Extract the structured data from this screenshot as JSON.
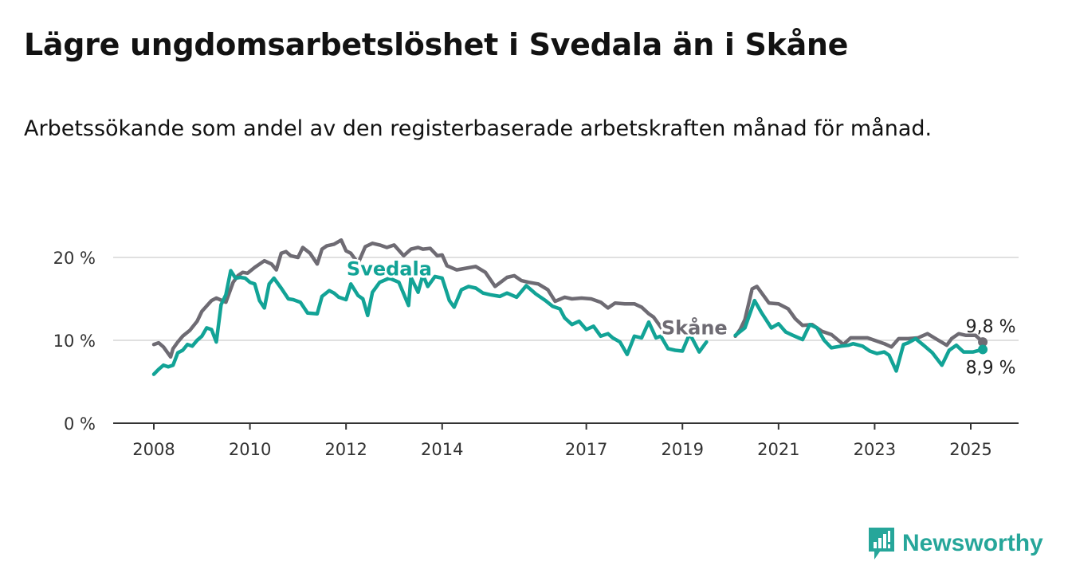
{
  "header": {
    "title": "Lägre ungdomsarbetslöshet i Svedala än i Skåne",
    "subtitle": "Arbetssökande som andel av den registerbaserade arbetskraften månad för månad."
  },
  "brand": {
    "name": "Newsworthy",
    "color": "#26a69a"
  },
  "chart_data": {
    "type": "line",
    "title": "Lägre ungdomsarbetslöshet i Svedala än i Skåne",
    "subtitle": "Arbetssökande som andel av den registerbaserade arbetskraften månad för månad.",
    "y_ticks": [
      {
        "value": 0,
        "label": "0 %"
      },
      {
        "value": 10,
        "label": "10 %"
      },
      {
        "value": 20,
        "label": "20 %"
      }
    ],
    "x_ticks": [
      {
        "value": 2008,
        "label": "2008"
      },
      {
        "value": 2010,
        "label": "2010"
      },
      {
        "value": 2012,
        "label": "2012"
      },
      {
        "value": 2014,
        "label": "2014"
      },
      {
        "value": 2017,
        "label": "2017"
      },
      {
        "value": 2019,
        "label": "2019"
      },
      {
        "value": 2021,
        "label": "2021"
      },
      {
        "value": 2023,
        "label": "2023"
      },
      {
        "value": 2025,
        "label": "2025"
      }
    ],
    "xlim": [
      2005.8,
      2026.0
    ],
    "ylim": [
      0,
      23
    ],
    "grid": true,
    "legend": "direct labels on lines",
    "series": [
      {
        "name": "Skåne",
        "color": "#6e6b73",
        "label_at": [
          2019.25,
          11.5
        ],
        "end_label": "9,8 %",
        "x": [
          2008.0,
          2008.1,
          2008.2,
          2008.35,
          2008.4,
          2008.5,
          2008.6,
          2008.75,
          2008.9,
          2009.0,
          2009.2,
          2009.3,
          2009.5,
          2009.65,
          2009.75,
          2009.85,
          2009.95,
          2010.1,
          2010.3,
          2010.45,
          2010.55,
          2010.65,
          2010.75,
          2010.85,
          2011.0,
          2011.1,
          2011.25,
          2011.4,
          2011.5,
          2011.6,
          2011.75,
          2011.9,
          2012.0,
          2012.1,
          2012.25,
          2012.4,
          2012.55,
          2012.7,
          2012.85,
          2013.0,
          2013.2,
          2013.35,
          2013.5,
          2013.6,
          2013.75,
          2013.9,
          2014.0,
          2014.1,
          2014.3,
          2014.5,
          2014.7,
          2014.9,
          2015.1,
          2015.35,
          2015.5,
          2015.65,
          2015.8,
          2016.0,
          2016.2,
          2016.35,
          2016.55,
          2016.7,
          2016.9,
          2017.1,
          2017.3,
          2017.45,
          2017.6,
          2017.8,
          2018.0,
          2018.15,
          2018.3,
          2018.4,
          2018.5,
          2018.6
        ],
        "y": [
          9.5,
          9.7,
          9.2,
          8.0,
          9.0,
          9.8,
          10.5,
          11.2,
          12.3,
          13.5,
          14.8,
          15.1,
          14.6,
          17.0,
          17.8,
          18.2,
          18.1,
          18.8,
          19.6,
          19.2,
          18.5,
          20.5,
          20.7,
          20.2,
          20.0,
          21.2,
          20.5,
          19.2,
          21.0,
          21.4,
          21.6,
          22.1,
          20.8,
          20.5,
          19.3,
          21.3,
          21.7,
          21.5,
          21.2,
          21.5,
          20.2,
          21.0,
          21.2,
          21.0,
          21.1,
          20.2,
          20.3,
          19.0,
          18.5,
          18.7,
          18.9,
          18.2,
          16.5,
          17.6,
          17.8,
          17.2,
          17.0,
          16.8,
          16.1,
          14.7,
          15.2,
          15.0,
          15.1,
          15.0,
          14.6,
          13.9,
          14.5,
          14.4,
          14.4,
          14.0,
          13.2,
          12.8,
          12.0,
          11.2
        ]
      },
      {
        "name": "Skåne (2020–2025)",
        "color": "#6e6b73",
        "x": [
          2020.1,
          2020.2,
          2020.3,
          2020.45,
          2020.55,
          2020.65,
          2020.8,
          2021.0,
          2021.2,
          2021.35,
          2021.5,
          2021.7,
          2021.9,
          2022.1,
          2022.35,
          2022.5,
          2022.7,
          2022.85,
          2023.0,
          2023.2,
          2023.35,
          2023.5,
          2023.7,
          2023.9,
          2024.1,
          2024.3,
          2024.5,
          2024.6,
          2024.75,
          2024.9,
          2025.1,
          2025.25
        ],
        "y": [
          10.5,
          11.3,
          12.5,
          16.2,
          16.5,
          15.7,
          14.5,
          14.4,
          13.8,
          12.6,
          11.8,
          11.9,
          11.1,
          10.7,
          9.5,
          10.3,
          10.3,
          10.3,
          10.0,
          9.6,
          9.2,
          10.2,
          10.2,
          10.3,
          10.8,
          10.1,
          9.4,
          10.2,
          10.8,
          10.6,
          10.6,
          9.8
        ]
      },
      {
        "name": "Svedala",
        "color": "#12a396",
        "label_at": [
          2012.9,
          18.6
        ],
        "end_label": "8,9 %",
        "x": [
          2008.0,
          2008.1,
          2008.2,
          2008.3,
          2008.4,
          2008.5,
          2008.6,
          2008.7,
          2008.8,
          2008.9,
          2009.0,
          2009.1,
          2009.2,
          2009.3,
          2009.4,
          2009.5,
          2009.6,
          2009.7,
          2009.8,
          2009.9,
          2010.0,
          2010.1,
          2010.2,
          2010.3,
          2010.4,
          2010.5,
          2010.65,
          2010.8,
          2010.9,
          2011.05,
          2011.2,
          2011.4,
          2011.5,
          2011.65,
          2011.75,
          2011.85,
          2012.0,
          2012.1,
          2012.25,
          2012.35,
          2012.45,
          2012.55,
          2012.7,
          2012.9,
          2013.1,
          2013.3,
          2013.35,
          2013.5,
          2013.6,
          2013.7,
          2013.85,
          2014.0,
          2014.15,
          2014.25,
          2014.4,
          2014.55,
          2014.7,
          2014.85,
          2015.0,
          2015.2,
          2015.35,
          2015.55,
          2015.75,
          2015.95,
          2016.15,
          2016.3,
          2016.45,
          2016.55,
          2016.7,
          2016.85,
          2017.0,
          2017.15,
          2017.3,
          2017.45,
          2017.55,
          2017.7,
          2017.85,
          2018.0,
          2018.15,
          2018.3,
          2018.45,
          2018.55,
          2018.7,
          2018.85,
          2019.0,
          2019.15,
          2019.35,
          2019.5
        ],
        "y": [
          5.9,
          6.5,
          7.0,
          6.8,
          7.0,
          8.5,
          8.8,
          9.5,
          9.3,
          10.0,
          10.5,
          11.5,
          11.3,
          9.8,
          14.3,
          15.5,
          18.4,
          17.5,
          17.6,
          17.5,
          17.0,
          16.8,
          14.8,
          13.9,
          16.8,
          17.5,
          16.3,
          15.0,
          14.9,
          14.6,
          13.3,
          13.2,
          15.3,
          16.0,
          15.7,
          15.2,
          14.9,
          16.8,
          15.4,
          15.0,
          13.0,
          15.8,
          17.0,
          17.5,
          17.0,
          14.2,
          17.6,
          15.8,
          17.9,
          16.5,
          17.7,
          17.5,
          14.8,
          14.0,
          16.1,
          16.5,
          16.3,
          15.7,
          15.5,
          15.3,
          15.7,
          15.2,
          16.6,
          15.6,
          14.8,
          14.1,
          13.8,
          12.7,
          11.9,
          12.3,
          11.3,
          11.7,
          10.5,
          10.8,
          10.3,
          9.8,
          8.3,
          10.5,
          10.3,
          12.2,
          10.3,
          10.5,
          9.0,
          8.8,
          8.7,
          10.8,
          8.6,
          9.8
        ]
      },
      {
        "name": "Svedala (2020–2025)",
        "color": "#12a396",
        "x": [
          2020.1,
          2020.3,
          2020.5,
          2020.65,
          2020.85,
          2021.0,
          2021.15,
          2021.3,
          2021.5,
          2021.65,
          2021.8,
          2021.95,
          2022.1,
          2022.3,
          2022.45,
          2022.55,
          2022.75,
          2022.9,
          2023.05,
          2023.2,
          2023.3,
          2023.45,
          2023.6,
          2023.7,
          2023.85,
          2024.0,
          2024.2,
          2024.4,
          2024.55,
          2024.7,
          2024.85,
          2025.05,
          2025.25
        ],
        "y": [
          10.6,
          11.5,
          14.8,
          13.3,
          11.5,
          12.0,
          11.0,
          10.6,
          10.1,
          11.9,
          11.5,
          10.0,
          9.1,
          9.3,
          9.4,
          9.6,
          9.3,
          8.7,
          8.4,
          8.6,
          8.2,
          6.3,
          9.5,
          9.7,
          10.2,
          9.5,
          8.5,
          7.0,
          8.8,
          9.4,
          8.6,
          8.6,
          8.9
        ]
      }
    ]
  }
}
